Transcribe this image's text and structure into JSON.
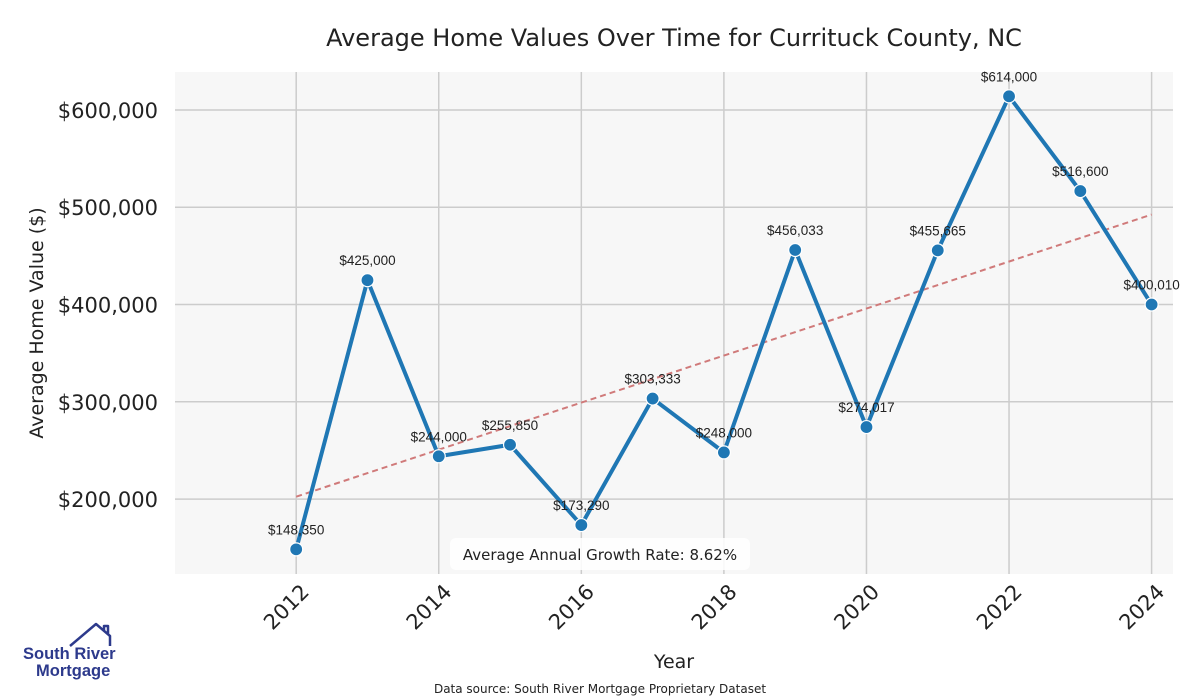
{
  "chart_data": {
    "type": "line",
    "title": "Average Home Values Over Time for Currituck County, NC",
    "xlabel": "Year",
    "ylabel": "Average Home Value ($)",
    "x": [
      2012,
      2013,
      2014,
      2015,
      2016,
      2017,
      2018,
      2019,
      2020,
      2021,
      2022,
      2023,
      2024
    ],
    "series": [
      {
        "values": [
          148350,
          425000,
          244000,
          255850,
          173290,
          303333,
          248000,
          456033,
          274017,
          455665,
          614000,
          516600,
          400010
        ],
        "data_labels": [
          "$148,350",
          "$425,000",
          "$244,000",
          "$255,850",
          "$173,290",
          "$303,333",
          "$248,000",
          "$456,033",
          "$274,017",
          "$455,665",
          "$614,000",
          "$516,600",
          "$400,010"
        ],
        "color": "#1f77b4"
      }
    ],
    "trendline": {
      "start": [
        2012,
        202500
      ],
      "end": [
        2024,
        492500
      ],
      "color": "#d07a7a",
      "style": "dashed"
    },
    "x_ticks": [
      "2012",
      "2014",
      "2016",
      "2018",
      "2020",
      "2022",
      "2024"
    ],
    "y_ticks": [
      "$200,000",
      "$300,000",
      "$400,000",
      "$500,000",
      "$600,000"
    ],
    "y_tick_values": [
      200000,
      300000,
      400000,
      500000,
      600000
    ],
    "x_tick_values": [
      2012,
      2014,
      2016,
      2018,
      2020,
      2022,
      2024
    ],
    "xlim": [
      2010.3,
      2024.3
    ],
    "ylim": [
      123000,
      639000
    ],
    "grid": true,
    "annotation": "Average Annual Growth Rate: 8.62%",
    "background": "#f7f7f7",
    "grid_color": "#cccccc"
  },
  "footer": {
    "source": "Data source: South River Mortgage Proprietary Dataset",
    "logo_line1": "South River",
    "logo_line2": "Mortgage"
  }
}
